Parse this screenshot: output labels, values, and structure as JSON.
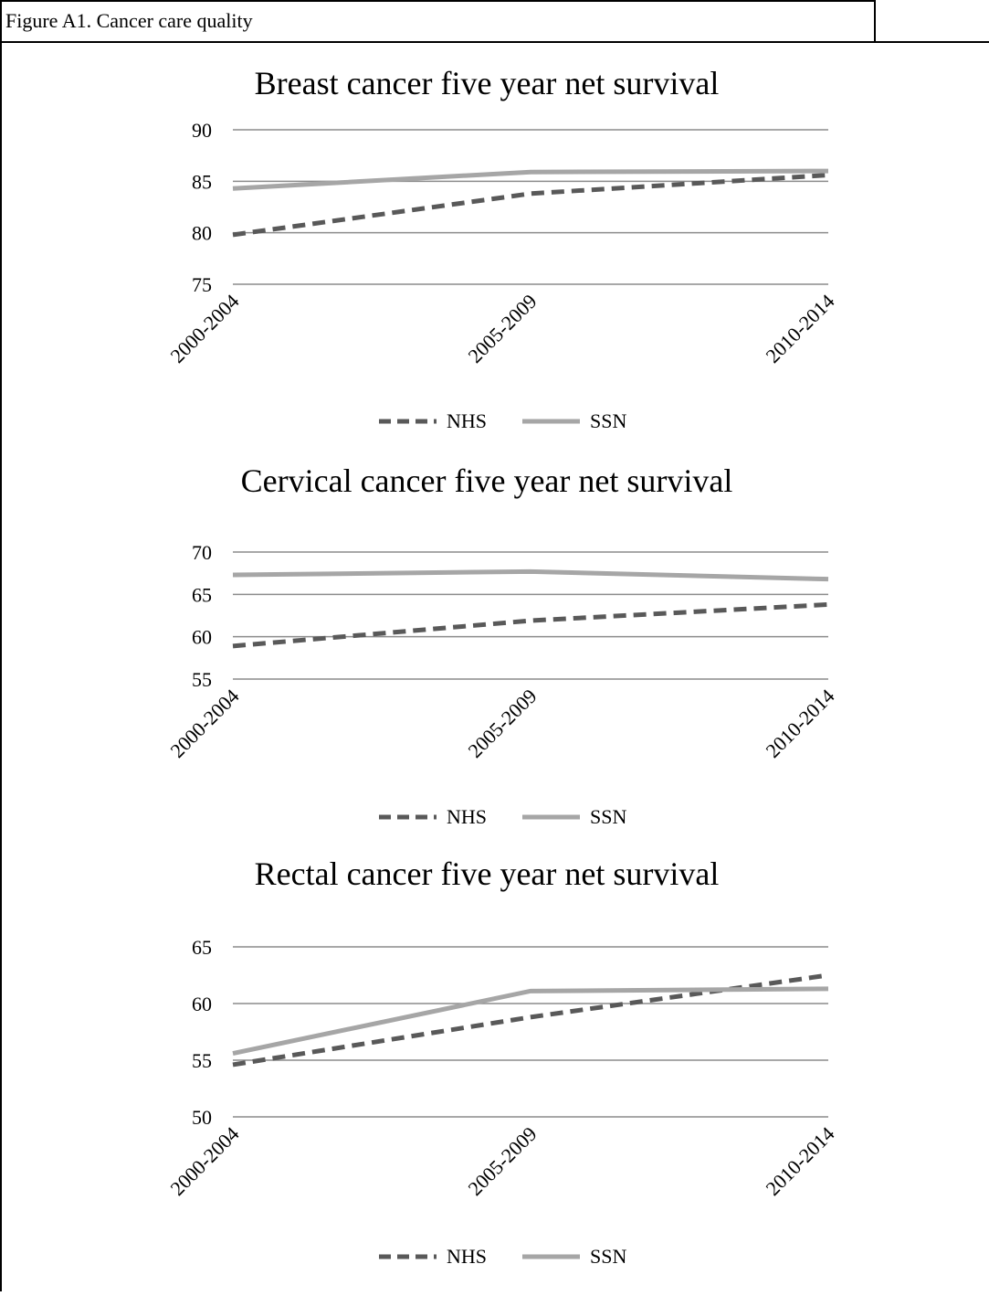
{
  "caption": "Figure A1. Cancer care quality",
  "chart_data": [
    {
      "type": "line",
      "title": "Breast cancer five year net survival",
      "categories": [
        "2000-2004",
        "2005-2009",
        "2010-2014"
      ],
      "series": [
        {
          "name": "NHS",
          "color": "#595959",
          "line_style": "dashed",
          "values": [
            79.8,
            83.8,
            85.6
          ]
        },
        {
          "name": "SSN",
          "color": "#a6a6a6",
          "line_style": "solid",
          "values": [
            84.3,
            85.9,
            86.0
          ]
        }
      ],
      "ylim": [
        75,
        90
      ],
      "yticks": [
        75,
        80,
        85,
        90
      ],
      "grid": true,
      "legend": "bottom"
    },
    {
      "type": "line",
      "title": "Cervical cancer five year net survival",
      "categories": [
        "2000-2004",
        "2005-2009",
        "2010-2014"
      ],
      "series": [
        {
          "name": "NHS",
          "color": "#595959",
          "line_style": "dashed",
          "values": [
            58.9,
            61.9,
            63.8
          ]
        },
        {
          "name": "SSN",
          "color": "#a6a6a6",
          "line_style": "solid",
          "values": [
            67.3,
            67.7,
            66.8
          ]
        }
      ],
      "ylim": [
        55,
        70
      ],
      "yticks": [
        55,
        60,
        65,
        70
      ],
      "grid": true,
      "legend": "bottom"
    },
    {
      "type": "line",
      "title": "Rectal cancer five year net survival",
      "categories": [
        "2000-2004",
        "2005-2009",
        "2010-2014"
      ],
      "series": [
        {
          "name": "NHS",
          "color": "#595959",
          "line_style": "dashed",
          "values": [
            54.6,
            58.8,
            62.5
          ]
        },
        {
          "name": "SSN",
          "color": "#a6a6a6",
          "line_style": "solid",
          "values": [
            55.6,
            61.1,
            61.3
          ]
        }
      ],
      "ylim": [
        50,
        65
      ],
      "yticks": [
        50,
        55,
        60,
        65
      ],
      "grid": true,
      "legend": "bottom"
    }
  ]
}
